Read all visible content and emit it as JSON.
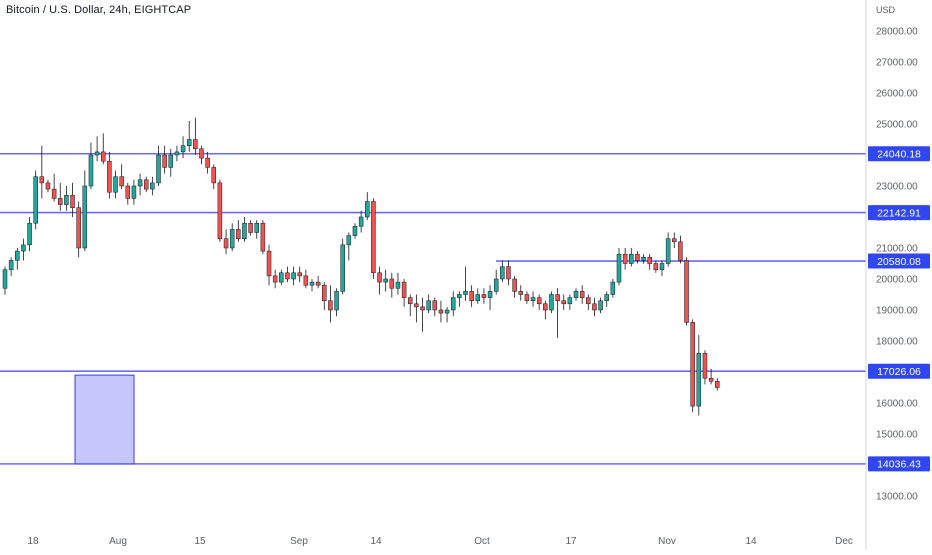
{
  "header": {
    "title": "Bitcoin / U.S. Dollar, 24h, EIGHTCAP"
  },
  "colors": {
    "up": "#26a69a",
    "down": "#ef5350",
    "level_line": "#6b6bf0",
    "level_label_bg": "#2f46f0",
    "box_fill": "#c5c6fb",
    "box_stroke": "#3b3be6",
    "axis_text": "#5d606b"
  },
  "chart_data": {
    "type": "candlestick",
    "title": "Bitcoin / U.S. Dollar, 24h, EIGHTCAP",
    "y_axis": {
      "unit_label": "USD",
      "range": [
        12000,
        29000
      ],
      "ticks": [
        "13000.00",
        "14000.00",
        "15000.00",
        "16000.00",
        "17000.00",
        "18000.00",
        "19000.00",
        "20000.00",
        "21000.00",
        "22000.00",
        "23000.00",
        "24000.00",
        "25000.00",
        "26000.00",
        "27000.00",
        "28000.00"
      ]
    },
    "x_axis": {
      "labels": [
        "18",
        "Aug",
        "15",
        "Sep",
        "14",
        "Oct",
        "17",
        "Nov",
        "14",
        "Dec"
      ]
    },
    "levels": [
      {
        "label": "24040.18",
        "value": 24040.18
      },
      {
        "label": "22142.91",
        "value": 22142.91
      },
      {
        "label": "20580.08",
        "value": 20580.08,
        "from": "Oct"
      },
      {
        "label": "17026.06",
        "value": 17026.06
      },
      {
        "label": "14036.43",
        "value": 14036.43
      }
    ],
    "zone_box": {
      "price_top": 16900,
      "price_bottom": 14036.43
    },
    "candles": [
      [
        19700,
        20400,
        19500,
        20300
      ],
      [
        20300,
        20700,
        20100,
        20600
      ],
      [
        20600,
        21000,
        20300,
        20900
      ],
      [
        20900,
        21300,
        20600,
        21100
      ],
      [
        21100,
        22000,
        20900,
        21800
      ],
      [
        21800,
        23500,
        21600,
        23300
      ],
      [
        23300,
        24300,
        22600,
        23100
      ],
      [
        23100,
        23200,
        22800,
        22900
      ],
      [
        22900,
        23400,
        22500,
        22600
      ],
      [
        22600,
        23100,
        22200,
        22400
      ],
      [
        22400,
        23000,
        22200,
        22700
      ],
      [
        22700,
        23100,
        22000,
        22300
      ],
      [
        22300,
        22500,
        20700,
        21000
      ],
      [
        21000,
        23500,
        20900,
        23000
      ],
      [
        23000,
        24400,
        22900,
        24000
      ],
      [
        24000,
        24600,
        23800,
        24100
      ],
      [
        24100,
        24700,
        23700,
        23800
      ],
      [
        23800,
        24100,
        22600,
        22800
      ],
      [
        22800,
        23500,
        22600,
        23300
      ],
      [
        23300,
        23700,
        22900,
        23000
      ],
      [
        23000,
        23100,
        22400,
        22600
      ],
      [
        22600,
        23200,
        22400,
        23000
      ],
      [
        23000,
        23400,
        22700,
        23200
      ],
      [
        23200,
        23300,
        22800,
        22900
      ],
      [
        22900,
        23300,
        22700,
        23100
      ],
      [
        23100,
        24300,
        23000,
        24000
      ],
      [
        24000,
        24300,
        23400,
        23600
      ],
      [
        23600,
        24200,
        23300,
        24000
      ],
      [
        24000,
        24300,
        23800,
        24100
      ],
      [
        24100,
        24600,
        23900,
        24300
      ],
      [
        24300,
        25100,
        24100,
        24500
      ],
      [
        24500,
        25200,
        24000,
        24200
      ],
      [
        24200,
        24300,
        23700,
        23900
      ],
      [
        23900,
        24100,
        23400,
        23600
      ],
      [
        23600,
        23700,
        22900,
        23100
      ],
      [
        23100,
        23200,
        21200,
        21300
      ],
      [
        21300,
        21600,
        20800,
        21000
      ],
      [
        21000,
        21800,
        20900,
        21600
      ],
      [
        21600,
        21900,
        21200,
        21300
      ],
      [
        21300,
        22000,
        21200,
        21800
      ],
      [
        21800,
        21900,
        21400,
        21500
      ],
      [
        21500,
        21900,
        21300,
        21800
      ],
      [
        21800,
        21900,
        20800,
        20900
      ],
      [
        20900,
        21100,
        19800,
        20100
      ],
      [
        20100,
        20300,
        19700,
        19900
      ],
      [
        19900,
        20300,
        19800,
        20200
      ],
      [
        20200,
        20400,
        19900,
        20000
      ],
      [
        20000,
        20400,
        19800,
        20200
      ],
      [
        20200,
        20400,
        19900,
        20100
      ],
      [
        20100,
        20300,
        19700,
        19800
      ],
      [
        19800,
        20000,
        19600,
        19900
      ],
      [
        19900,
        20100,
        19700,
        19800
      ],
      [
        19800,
        19900,
        19000,
        19300
      ],
      [
        19300,
        19800,
        18600,
        19000
      ],
      [
        19000,
        19700,
        18800,
        19600
      ],
      [
        19600,
        21300,
        19500,
        21100
      ],
      [
        21100,
        21500,
        20600,
        21400
      ],
      [
        21400,
        21800,
        21300,
        21700
      ],
      [
        21700,
        22200,
        21500,
        22000
      ],
      [
        22000,
        22800,
        21900,
        22500
      ],
      [
        22500,
        22600,
        20000,
        20200
      ],
      [
        20200,
        20400,
        19500,
        19900
      ],
      [
        19900,
        20300,
        19600,
        20000
      ],
      [
        20000,
        20200,
        19400,
        19700
      ],
      [
        19700,
        20200,
        19500,
        19900
      ],
      [
        19900,
        20000,
        19100,
        19400
      ],
      [
        19400,
        19500,
        18800,
        19200
      ],
      [
        19200,
        19500,
        18600,
        19100
      ],
      [
        19100,
        19400,
        18300,
        19000
      ],
      [
        19000,
        19500,
        18900,
        19300
      ],
      [
        19300,
        19400,
        18800,
        19000
      ],
      [
        19000,
        19300,
        18600,
        18900
      ],
      [
        18900,
        19100,
        18600,
        19000
      ],
      [
        19000,
        19600,
        18800,
        19400
      ],
      [
        19400,
        19600,
        19100,
        19500
      ],
      [
        19500,
        20400,
        19300,
        19600
      ],
      [
        19600,
        19800,
        19100,
        19300
      ],
      [
        19300,
        19700,
        19200,
        19500
      ],
      [
        19500,
        19700,
        19200,
        19400
      ],
      [
        19400,
        19800,
        19000,
        19600
      ],
      [
        19600,
        20300,
        19500,
        20000
      ],
      [
        20000,
        20600,
        19900,
        20400
      ],
      [
        20400,
        20600,
        19800,
        20000
      ],
      [
        20000,
        20100,
        19400,
        19600
      ],
      [
        19600,
        19800,
        19300,
        19500
      ],
      [
        19500,
        19600,
        19200,
        19300
      ],
      [
        19300,
        19600,
        19100,
        19400
      ],
      [
        19400,
        19500,
        19000,
        19200
      ],
      [
        19200,
        19300,
        18700,
        19000
      ],
      [
        19000,
        19600,
        18900,
        19500
      ],
      [
        19500,
        19700,
        18100,
        19300
      ],
      [
        19300,
        19500,
        19000,
        19200
      ],
      [
        19200,
        19500,
        19000,
        19400
      ],
      [
        19400,
        19700,
        19300,
        19600
      ],
      [
        19600,
        19800,
        19200,
        19400
      ],
      [
        19400,
        19500,
        19000,
        19200
      ],
      [
        19200,
        19400,
        18800,
        19000
      ],
      [
        19000,
        19400,
        18900,
        19300
      ],
      [
        19300,
        19600,
        19100,
        19500
      ],
      [
        19500,
        20000,
        19400,
        19900
      ],
      [
        19900,
        21000,
        19800,
        20800
      ],
      [
        20800,
        21000,
        20300,
        20500
      ],
      [
        20500,
        21000,
        20400,
        20800
      ],
      [
        20800,
        20900,
        20500,
        20600
      ],
      [
        20600,
        20800,
        20500,
        20700
      ],
      [
        20700,
        20800,
        20300,
        20500
      ],
      [
        20500,
        20600,
        20200,
        20300
      ],
      [
        20300,
        20600,
        20100,
        20500
      ],
      [
        20500,
        21500,
        20400,
        21300
      ],
      [
        21300,
        21500,
        21000,
        21200
      ],
      [
        21200,
        21400,
        20500,
        20600
      ],
      [
        20600,
        20700,
        18500,
        18600
      ],
      [
        18600,
        18700,
        15700,
        15900
      ],
      [
        15900,
        18200,
        15600,
        17600
      ],
      [
        17600,
        17700,
        16600,
        16800
      ],
      [
        16800,
        17100,
        16600,
        16700
      ],
      [
        16700,
        16800,
        16400,
        16500
      ]
    ]
  }
}
